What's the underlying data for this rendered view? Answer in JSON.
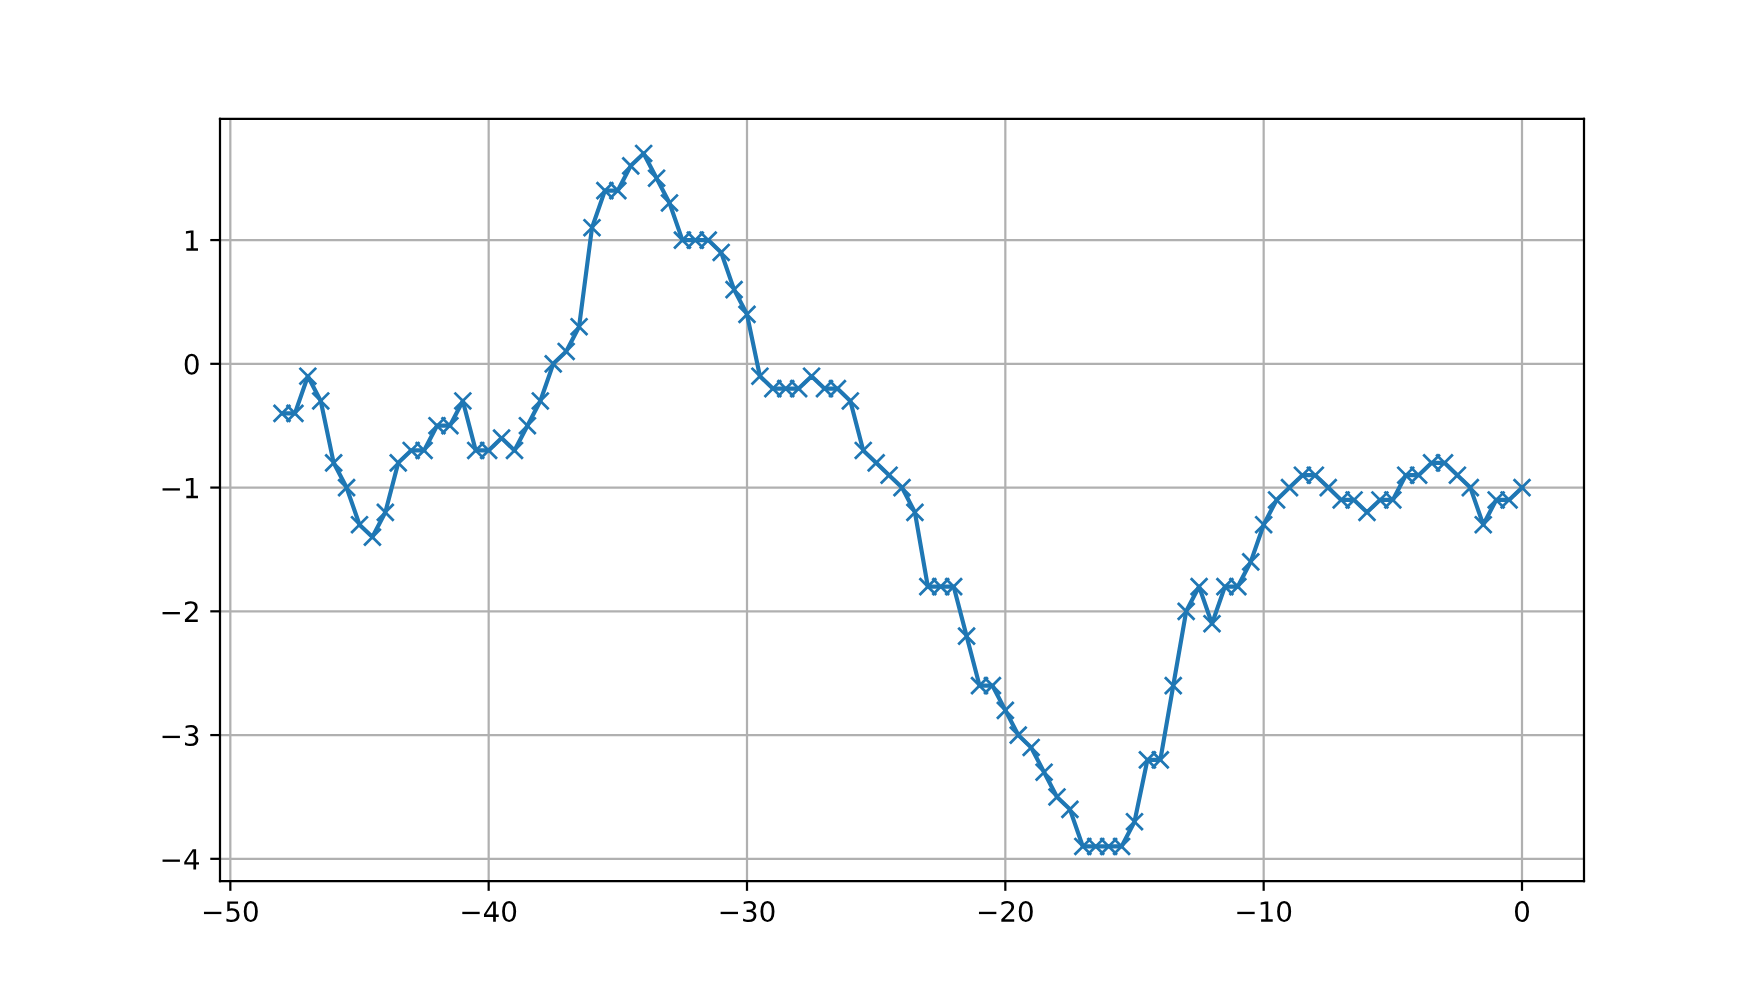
{
  "chart_data": {
    "type": "line",
    "x": [
      -48,
      -47.5,
      -47,
      -46.5,
      -46,
      -45.5,
      -45,
      -44.5,
      -44,
      -43.5,
      -43,
      -42.5,
      -42,
      -41.5,
      -41,
      -40.5,
      -40,
      -39.5,
      -39,
      -38.5,
      -38,
      -37.5,
      -37,
      -36.5,
      -36,
      -35.5,
      -35,
      -34.5,
      -34,
      -33.5,
      -33,
      -32.5,
      -32,
      -31.5,
      -31,
      -30.5,
      -30,
      -29.5,
      -29,
      -28.5,
      -28,
      -27.5,
      -27,
      -26.5,
      -26,
      -25.5,
      -25,
      -24.5,
      -24,
      -23.5,
      -23,
      -22.5,
      -22,
      -21.5,
      -21,
      -20.5,
      -20,
      -19.5,
      -19,
      -18.5,
      -18,
      -17.5,
      -17,
      -16.5,
      -16,
      -15.5,
      -15,
      -14.5,
      -14,
      -13.5,
      -13,
      -12.5,
      -12,
      -11.5,
      -11,
      -10.5,
      -10,
      -9.5,
      -9,
      -8.5,
      -8,
      -7.5,
      -7,
      -6.5,
      -6,
      -5.5,
      -5,
      -4.5,
      -4,
      -3.5,
      -3,
      -2.5,
      -2,
      -1.5,
      -1,
      -0.5,
      0
    ],
    "series": [
      {
        "color": "#1f77b4",
        "values": [
          -0.4,
          -0.4,
          -0.1,
          -0.3,
          -0.8,
          -1.0,
          -1.3,
          -1.4,
          -1.2,
          -0.8,
          -0.7,
          -0.7,
          -0.5,
          -0.5,
          -0.3,
          -0.7,
          -0.7,
          -0.6,
          -0.7,
          -0.5,
          -0.3,
          0.0,
          0.1,
          0.3,
          1.1,
          1.4,
          1.4,
          1.6,
          1.7,
          1.5,
          1.3,
          1.0,
          1.0,
          1.0,
          0.9,
          0.6,
          0.4,
          -0.1,
          -0.2,
          -0.2,
          -0.2,
          -0.1,
          -0.2,
          -0.2,
          -0.3,
          -0.7,
          -0.8,
          -0.9,
          -1.0,
          -1.2,
          -1.8,
          -1.8,
          -1.8,
          -2.2,
          -2.6,
          -2.6,
          -2.8,
          -3.0,
          -3.1,
          -3.3,
          -3.5,
          -3.6,
          -3.9,
          -3.9,
          -3.9,
          -3.9,
          -3.7,
          -3.2,
          -3.2,
          -2.6,
          -2.0,
          -1.8,
          -2.1,
          -1.8,
          -1.8,
          -1.6,
          -1.3,
          -1.1,
          -1.0,
          -0.9,
          -0.9,
          -1.0,
          -1.1,
          -1.1,
          -1.2,
          -1.1,
          -1.1,
          -0.9,
          -0.9,
          -0.8,
          -0.8,
          -0.9,
          -1.0,
          -1.3,
          -1.1,
          -1.1,
          -1.0
        ]
      }
    ],
    "xlim": [
      -50.4,
      2.4
    ],
    "ylim": [
      -4.18,
      1.98
    ],
    "xticks": [
      {
        "value": -50,
        "label": "−50"
      },
      {
        "value": -40,
        "label": "−40"
      },
      {
        "value": -30,
        "label": "−30"
      },
      {
        "value": -20,
        "label": "−20"
      },
      {
        "value": -10,
        "label": "−10"
      },
      0
    ],
    "yticks": [
      {
        "value": -4,
        "label": "−4"
      },
      {
        "value": -3,
        "label": "−3"
      },
      {
        "value": -2,
        "label": "−2"
      },
      {
        "value": -1,
        "label": "−1"
      },
      0,
      1
    ],
    "grid": true,
    "marker": "cross",
    "line_style": "solid"
  }
}
